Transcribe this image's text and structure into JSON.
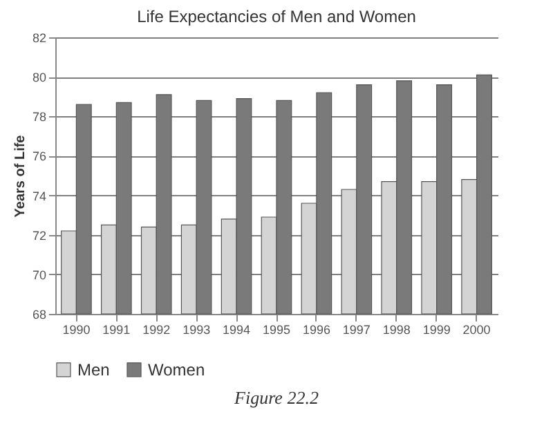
{
  "chart_data": {
    "type": "bar",
    "title": "Life Expectancies of Men and Women",
    "ylabel": "Years of Life",
    "categories": [
      "1990",
      "1991",
      "1992",
      "1993",
      "1994",
      "1995",
      "1996",
      "1997",
      "1998",
      "1999",
      "2000"
    ],
    "series": [
      {
        "name": "Men",
        "color": "#d4d4d4",
        "values": [
          72.2,
          72.5,
          72.4,
          72.5,
          72.8,
          72.9,
          73.6,
          74.3,
          74.7,
          74.7,
          74.8
        ]
      },
      {
        "name": "Women",
        "color": "#7a7a7a",
        "values": [
          78.6,
          78.7,
          79.1,
          78.8,
          78.9,
          78.8,
          79.2,
          79.6,
          79.8,
          79.6,
          80.1
        ]
      }
    ],
    "ylim": [
      68,
      82
    ],
    "yticks": [
      68,
      70,
      72,
      74,
      76,
      78,
      80,
      82
    ],
    "grid": "y",
    "legend": "bottom",
    "annotations": [
      "Figure 22.2"
    ]
  }
}
